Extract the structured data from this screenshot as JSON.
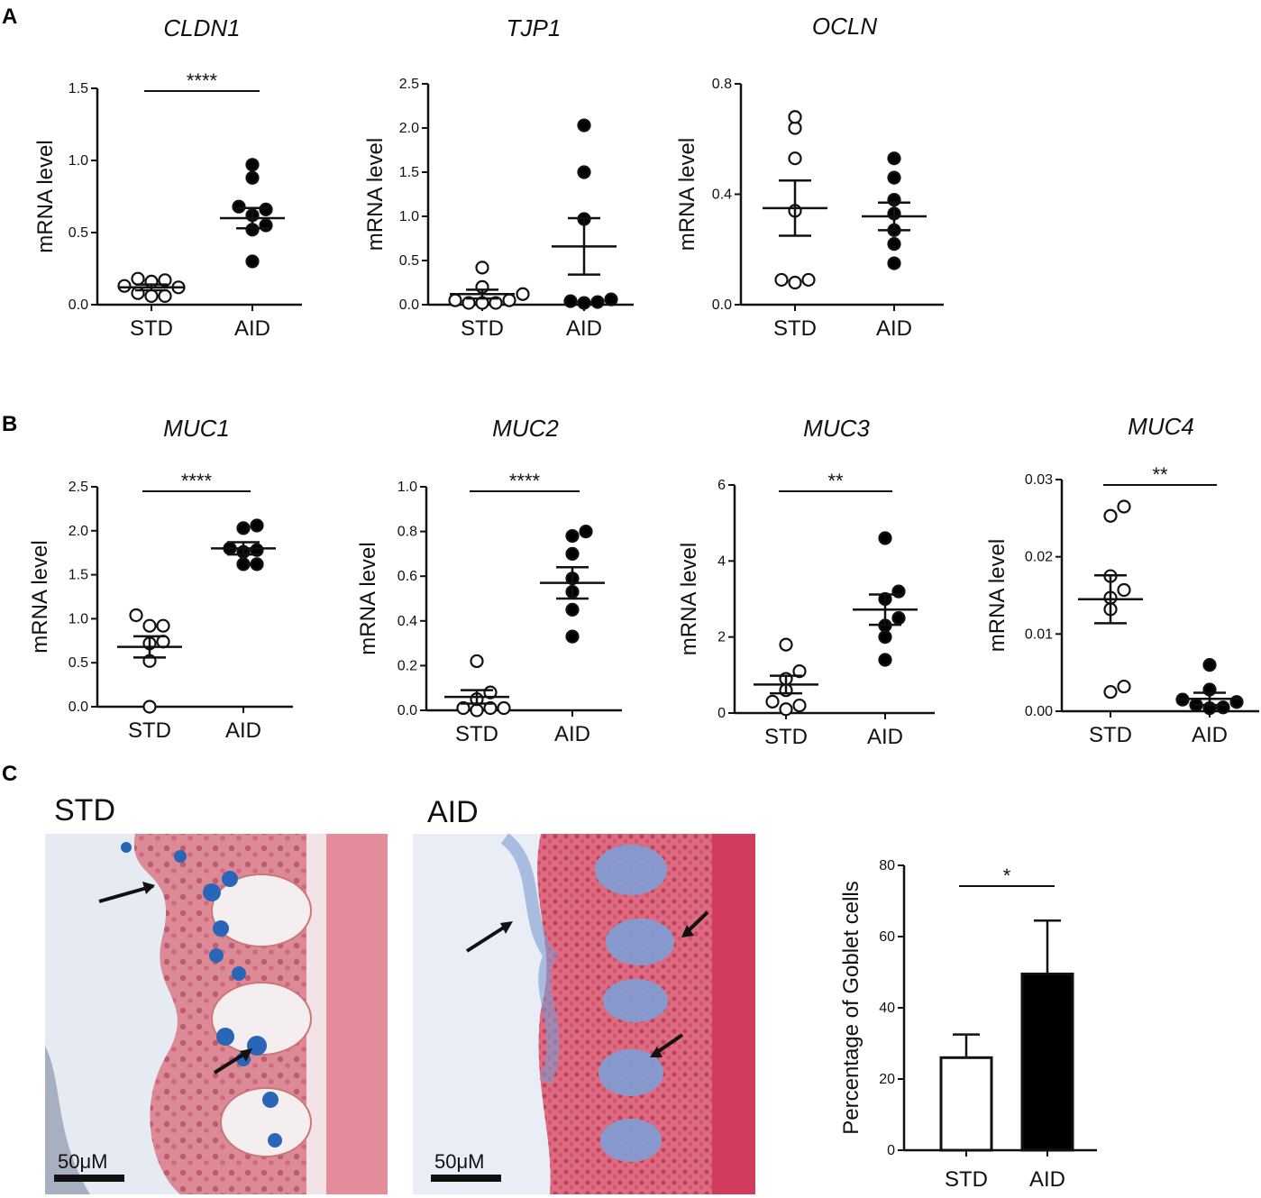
{
  "panels": {
    "A": "A",
    "B": "B",
    "C": "C"
  },
  "micrographs": [
    {
      "label": "STD",
      "scale_bar": "50μM"
    },
    {
      "label": "AID",
      "scale_bar": "50μM"
    }
  ],
  "colors": {
    "axis": "#111111",
    "filled_marker": "#000000",
    "open_marker": "#ffffff",
    "tissue_pink": "#e07a8a",
    "goblet_blue": "#2e6fb5",
    "background_lumen": "#eaeef6"
  },
  "chart_data": [
    {
      "type": "scatter",
      "panel": "A",
      "title": "CLDN1",
      "ylabel": "mRNA level",
      "categories": [
        "STD",
        "AID"
      ],
      "ylim": [
        0,
        1.5
      ],
      "yticks": [
        "0.0",
        "0.5",
        "1.0",
        "1.5"
      ],
      "tick_values": [
        0,
        0.5,
        1.0,
        1.5
      ],
      "series": [
        {
          "values": [
            0.18,
            0.17,
            0.16,
            0.13,
            0.12,
            0.08,
            0.06,
            0.06
          ],
          "mean": 0.12,
          "sem": 0.02,
          "filled": false
        },
        {
          "values": [
            0.97,
            0.88,
            0.68,
            0.66,
            0.62,
            0.55,
            0.52,
            0.3
          ],
          "mean": 0.6,
          "sem": 0.07,
          "filled": true
        }
      ],
      "significance": "****"
    },
    {
      "type": "scatter",
      "panel": "A",
      "title": "TJP1",
      "ylabel": "mRNA level",
      "categories": [
        "STD",
        "AID"
      ],
      "ylim": [
        0,
        2.5
      ],
      "yticks": [
        "0.0",
        "0.5",
        "1.0",
        "1.5",
        "2.0",
        "2.5"
      ],
      "tick_values": [
        0,
        0.5,
        1.0,
        1.5,
        2.0,
        2.5
      ],
      "series": [
        {
          "values": [
            0.42,
            0.2,
            0.12,
            0.05,
            0.05,
            0.02,
            0.02,
            0.02
          ],
          "mean": 0.12,
          "sem": 0.05,
          "filled": false
        },
        {
          "values": [
            2.03,
            1.5,
            0.97,
            0.06,
            0.04,
            0.03,
            0.02
          ],
          "mean": 0.66,
          "sem": 0.32,
          "filled": true
        }
      ],
      "significance": ""
    },
    {
      "type": "scatter",
      "panel": "A",
      "title": "OCLN",
      "ylabel": "mRNA level",
      "categories": [
        "STD",
        "AID"
      ],
      "ylim": [
        0,
        0.8
      ],
      "yticks": [
        "0.0",
        "0.4",
        "0.8"
      ],
      "tick_values": [
        0,
        0.4,
        0.8
      ],
      "series": [
        {
          "values": [
            0.68,
            0.64,
            0.53,
            0.34,
            0.09,
            0.09,
            0.08
          ],
          "mean": 0.35,
          "sem": 0.1,
          "filled": false
        },
        {
          "values": [
            0.53,
            0.46,
            0.38,
            0.33,
            0.27,
            0.22,
            0.15
          ],
          "mean": 0.32,
          "sem": 0.05,
          "filled": true
        }
      ],
      "significance": ""
    },
    {
      "type": "scatter",
      "panel": "B",
      "title": "MUC1",
      "ylabel": "mRNA level",
      "categories": [
        "STD",
        "AID"
      ],
      "ylim": [
        0,
        2.5
      ],
      "yticks": [
        "0.0",
        "0.5",
        "1.0",
        "1.5",
        "2.0",
        "2.5"
      ],
      "tick_values": [
        0,
        0.5,
        1.0,
        1.5,
        2.0,
        2.5
      ],
      "series": [
        {
          "values": [
            1.04,
            0.92,
            0.92,
            0.74,
            0.72,
            0.52,
            0.0
          ],
          "mean": 0.68,
          "sem": 0.12,
          "filled": false
        },
        {
          "values": [
            2.06,
            2.03,
            1.8,
            1.78,
            1.76,
            1.62,
            1.62
          ],
          "mean": 1.8,
          "sem": 0.07,
          "filled": true
        }
      ],
      "significance": "****"
    },
    {
      "type": "scatter",
      "panel": "B",
      "title": "MUC2",
      "ylabel": "mRNA level",
      "categories": [
        "STD",
        "AID"
      ],
      "ylim": [
        0,
        1.0
      ],
      "yticks": [
        "0.0",
        "0.2",
        "0.4",
        "0.6",
        "0.8",
        "1.0"
      ],
      "tick_values": [
        0,
        0.2,
        0.4,
        0.6,
        0.8,
        1.0
      ],
      "series": [
        {
          "values": [
            0.22,
            0.08,
            0.05,
            0.01,
            0.01,
            0.01,
            0.0
          ],
          "mean": 0.06,
          "sem": 0.03,
          "filled": false
        },
        {
          "values": [
            0.8,
            0.78,
            0.7,
            0.59,
            0.53,
            0.45,
            0.33
          ],
          "mean": 0.57,
          "sem": 0.07,
          "filled": true
        }
      ],
      "significance": "****"
    },
    {
      "type": "scatter",
      "panel": "B",
      "title": "MUC3",
      "ylabel": "mRNA level",
      "categories": [
        "STD",
        "AID"
      ],
      "ylim": [
        0,
        6
      ],
      "yticks": [
        "0",
        "2",
        "4",
        "6"
      ],
      "tick_values": [
        0,
        2,
        4,
        6
      ],
      "series": [
        {
          "values": [
            1.8,
            1.1,
            0.9,
            0.6,
            0.3,
            0.2,
            0.1
          ],
          "mean": 0.75,
          "sem": 0.23,
          "filled": false
        },
        {
          "values": [
            4.6,
            3.2,
            3.0,
            2.5,
            2.3,
            2.0,
            1.4
          ],
          "mean": 2.72,
          "sem": 0.4,
          "filled": true
        }
      ],
      "significance": "**"
    },
    {
      "type": "scatter",
      "panel": "B",
      "title": "MUC4",
      "ylabel": "mRNA level",
      "categories": [
        "STD",
        "AID"
      ],
      "ylim": [
        0,
        0.03
      ],
      "yticks": [
        "0.00",
        "0.01",
        "0.02",
        "0.03"
      ],
      "tick_values": [
        0,
        0.01,
        0.02,
        0.03
      ],
      "series": [
        {
          "values": [
            0.0265,
            0.0253,
            0.0175,
            0.0157,
            0.0147,
            0.0132,
            0.0032,
            0.0025
          ],
          "mean": 0.0145,
          "sem": 0.0031,
          "filled": false
        },
        {
          "values": [
            0.006,
            0.0028,
            0.0015,
            0.0012,
            0.0008,
            0.0005,
            0.0004
          ],
          "mean": 0.0016,
          "sem": 0.0008,
          "filled": true
        }
      ],
      "significance": "**"
    },
    {
      "type": "bar",
      "panel": "C",
      "title": "",
      "ylabel": "Percentage of Goblet cells",
      "categories": [
        "STD",
        "AID"
      ],
      "ylim": [
        0,
        80
      ],
      "yticks": [
        "0",
        "20",
        "40",
        "60",
        "80"
      ],
      "tick_values": [
        0,
        20,
        40,
        60,
        80
      ],
      "values": [
        26,
        49.5
      ],
      "errors": [
        6.5,
        15
      ],
      "fills": [
        "#ffffff",
        "#000000"
      ],
      "significance": "*"
    }
  ]
}
